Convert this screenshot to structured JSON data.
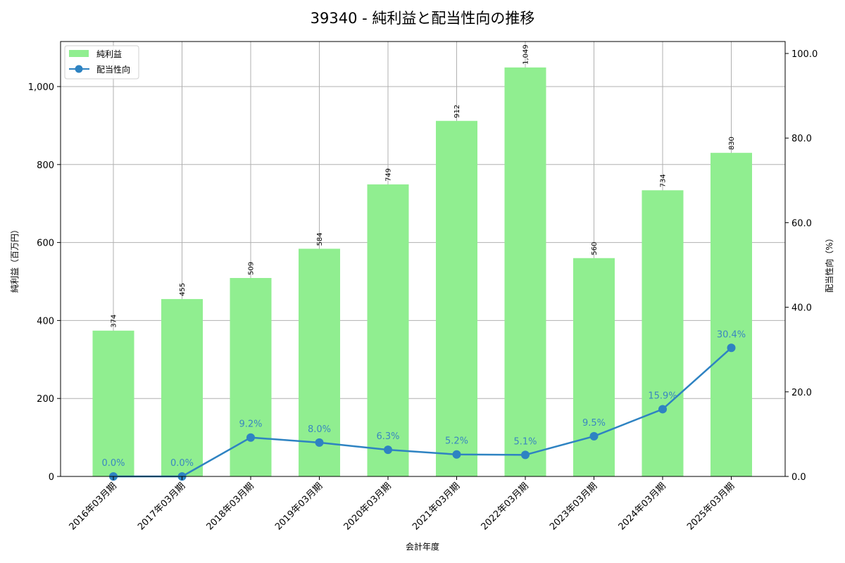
{
  "chart_data": {
    "type": "bar+line",
    "title": "39340 - 純利益と配当性向の推移",
    "xlabel": "会計年度",
    "ylabel_left": "純利益（百万円）",
    "ylabel_right": "配当性向（%）",
    "categories": [
      "2016年03月期",
      "2017年03月期",
      "2018年03月期",
      "2019年03月期",
      "2020年03月期",
      "2021年03月期",
      "2022年03月期",
      "2023年03月期",
      "2024年03月期",
      "2025年03月期"
    ],
    "series": [
      {
        "name": "純利益",
        "type": "bar",
        "axis": "left",
        "color": "#90ee90",
        "values": [
          374,
          455,
          509,
          584,
          749,
          912,
          1049,
          560,
          734,
          830
        ],
        "labels": [
          "374",
          "455",
          "509",
          "584",
          "749",
          "912",
          "1,049",
          "560",
          "734",
          "830"
        ]
      },
      {
        "name": "配当性向",
        "type": "line",
        "axis": "right",
        "color": "#2e83c2",
        "values": [
          0.0,
          0.0,
          9.2,
          8.0,
          6.3,
          5.2,
          5.1,
          9.5,
          15.9,
          30.4
        ],
        "labels": [
          "0.0%",
          "0.0%",
          "9.2%",
          "8.0%",
          "6.3%",
          "5.2%",
          "5.1%",
          "9.5%",
          "15.9%",
          "30.4%"
        ]
      }
    ],
    "ylim_left": [
      0,
      1120
    ],
    "ylim_right": [
      0,
      103
    ],
    "yticks_left": [
      0,
      200,
      400,
      600,
      800,
      1000
    ],
    "yticks_left_labels": [
      "0",
      "200",
      "400",
      "600",
      "800",
      "1,000"
    ],
    "yticks_right": [
      0,
      20,
      40,
      60,
      80,
      100
    ],
    "yticks_right_labels": [
      "0.0",
      "20.0",
      "40.0",
      "60.0",
      "80.0",
      "100.0"
    ],
    "grid": true,
    "legend_position": "upper left"
  }
}
